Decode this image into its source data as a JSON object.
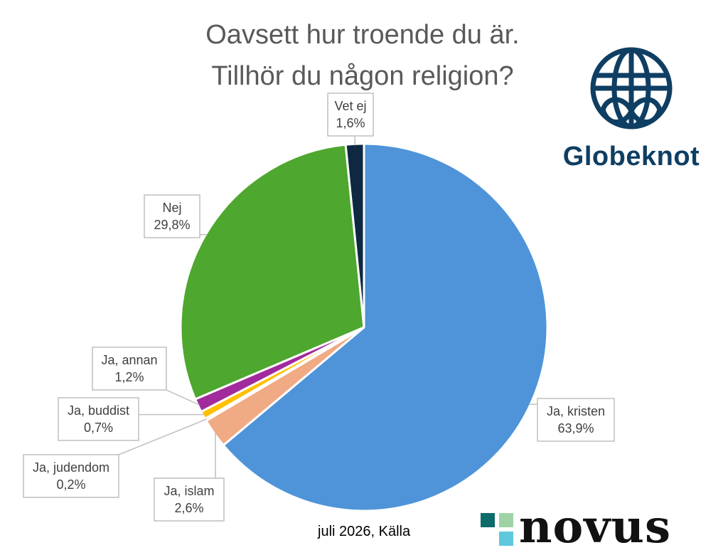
{
  "chart_data": {
    "type": "pie",
    "title_lines": [
      "Oavsett hur troende du är.",
      "Tillhör du någon religion?"
    ],
    "slices": [
      {
        "name": "Ja, kristen",
        "value_label": "63,9%",
        "value": 63.9,
        "color": "#4f94d9"
      },
      {
        "name": "Ja, islam",
        "value_label": "2,6%",
        "value": 2.6,
        "color": "#f0aa84"
      },
      {
        "name": "Ja, judendom",
        "value_label": "0,2%",
        "value": 0.2,
        "color": "#7f7f7f"
      },
      {
        "name": "Ja, buddist",
        "value_label": "0,7%",
        "value": 0.7,
        "color": "#ffc000"
      },
      {
        "name": "Ja, annan",
        "value_label": "1,2%",
        "value": 1.2,
        "color": "#a12b9c"
      },
      {
        "name": "Nej",
        "value_label": "29,8%",
        "value": 29.8,
        "color": "#4ea72e"
      },
      {
        "name": "Vet ej",
        "value_label": "1,6%",
        "value": 1.6,
        "color": "#0e2841"
      }
    ],
    "start_angle": "12 o'clock",
    "direction": "clockwise",
    "legend": "none"
  },
  "logos": {
    "globe_name": "Globeknot",
    "globe_icon": "globe-knot-icon",
    "globe_color": "#0f3e63",
    "novus_name": "novus",
    "novus_mark_colors": [
      "#0e6b6b",
      "#9fd3a6",
      "#ffffff",
      "#5ec9dc"
    ]
  },
  "footer": "juli 2026, Källa"
}
